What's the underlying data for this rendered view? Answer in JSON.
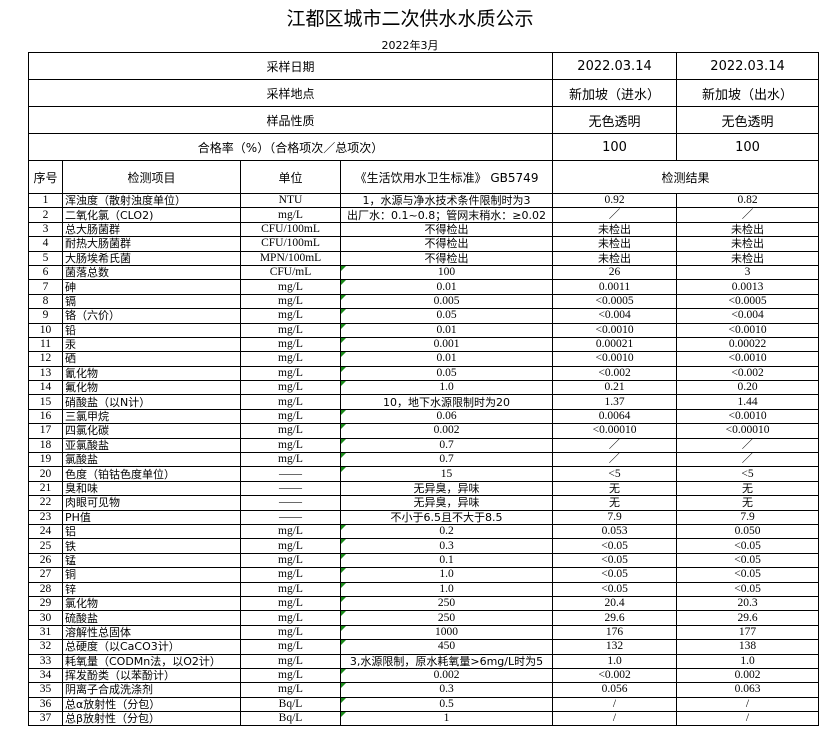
{
  "title": "江都区城市二次供水水质公示",
  "subtitle": "2022年3月",
  "summary": [
    {
      "label": "采样日期",
      "v1": "2022.03.14",
      "v2": "2022.03.14"
    },
    {
      "label": "采样地点",
      "v1": "新加坡（进水）",
      "v2": "新加坡（出水）"
    },
    {
      "label": "样品性质",
      "v1": "无色透明",
      "v2": "无色透明"
    },
    {
      "label": "合格率（%）（合格项次／总项次）",
      "v1": "100",
      "v2": "100"
    }
  ],
  "headers": {
    "no": "序号",
    "item": "检测项目",
    "unit": "单位",
    "standard": "《生活饮用水卫生标准》 GB5749",
    "result": "检测结果"
  },
  "rows": [
    [
      "1",
      "浑浊度（散射浊度单位）",
      "NTU",
      "1，水源与净水技术条件限制时为3",
      "0.92",
      "0.82"
    ],
    [
      "2",
      "二氧化氯（CLO2)",
      "mg/L",
      "出厂水：0.1~0.8；管网末稍水：≥0.02",
      "／",
      "／"
    ],
    [
      "3",
      "总大肠菌群",
      "CFU/100mL",
      "不得检出",
      "未检出",
      "未检出"
    ],
    [
      "4",
      "耐热大肠菌群",
      "CFU/100mL",
      "不得检出",
      "未检出",
      "未检出"
    ],
    [
      "5",
      "大肠埃希氏菌",
      "MPN/100mL",
      "不得检出",
      "未检出",
      "未检出"
    ],
    [
      "6",
      "菌落总数",
      "CFU/mL",
      "100",
      "26",
      "3"
    ],
    [
      "7",
      "砷",
      "mg/L",
      "0.01",
      "0.0011",
      "0.0013"
    ],
    [
      "8",
      "镉",
      "mg/L",
      "0.005",
      "<0.0005",
      "<0.0005"
    ],
    [
      "9",
      "铬（六价）",
      "mg/L",
      "0.05",
      "<0.004",
      "<0.004"
    ],
    [
      "10",
      "铅",
      "mg/L",
      "0.01",
      "<0.0010",
      "<0.0010"
    ],
    [
      "11",
      "汞",
      "mg/L",
      "0.001",
      "0.00021",
      "0.00022"
    ],
    [
      "12",
      "硒",
      "mg/L",
      "0.01",
      "<0.0010",
      "<0.0010"
    ],
    [
      "13",
      "氰化物",
      "mg/L",
      "0.05",
      "<0.002",
      "<0.002"
    ],
    [
      "14",
      "氟化物",
      "mg/L",
      "1.0",
      "0.21",
      "0.20"
    ],
    [
      "15",
      "硝酸盐（以N计）",
      "mg/L",
      "10，地下水源限制时为20",
      "1.37",
      "1.44"
    ],
    [
      "16",
      "三氯甲烷",
      "mg/L",
      "0.06",
      "0.0064",
      "<0.0010"
    ],
    [
      "17",
      "四氯化碳",
      "mg/L",
      "0.002",
      "<0.00010",
      "<0.00010"
    ],
    [
      "18",
      "亚氯酸盐",
      "mg/L",
      "0.7",
      "／",
      "／"
    ],
    [
      "19",
      "氯酸盐",
      "mg/L",
      "0.7",
      "／",
      "／"
    ],
    [
      "20",
      "色度（铂钴色度单位）",
      "——",
      "15",
      "<5",
      "<5"
    ],
    [
      "21",
      "臭和味",
      "——",
      "无异臭，异味",
      "无",
      "无"
    ],
    [
      "22",
      "肉眼可见物",
      "——",
      "无异臭，异味",
      "无",
      "无"
    ],
    [
      "23",
      "PH值",
      "——",
      "不小于6.5且不大于8.5",
      "7.9",
      "7.9"
    ],
    [
      "24",
      "铝",
      "mg/L",
      "0.2",
      "0.053",
      "0.050"
    ],
    [
      "25",
      "铁",
      "mg/L",
      "0.3",
      "<0.05",
      "<0.05"
    ],
    [
      "26",
      "锰",
      "mg/L",
      "0.1",
      "<0.05",
      "<0.05"
    ],
    [
      "27",
      "铜",
      "mg/L",
      "1.0",
      "<0.05",
      "<0.05"
    ],
    [
      "28",
      "锌",
      "mg/L",
      "1.0",
      "<0.05",
      "<0.05"
    ],
    [
      "29",
      "氯化物",
      "mg/L",
      "250",
      "20.4",
      "20.3"
    ],
    [
      "30",
      "硫酸盐",
      "mg/L",
      "250",
      "29.6",
      "29.6"
    ],
    [
      "31",
      "溶解性总固体",
      "mg/L",
      "1000",
      "176",
      "177"
    ],
    [
      "32",
      "总硬度（以CaCO3计）",
      "mg/L",
      "450",
      "132",
      "138"
    ],
    [
      "33",
      "耗氧量（CODMn法，以O2计）",
      "mg/L",
      "3,水源限制，原水耗氧量>6mg/L时为5",
      "1.0",
      "1.0"
    ],
    [
      "34",
      "挥发酚类（以苯酚计）",
      "mg/L",
      "0.002",
      "<0.002",
      "0.002"
    ],
    [
      "35",
      "阴离子合成洗涤剂",
      "mg/L",
      "0.3",
      "0.056",
      "0.063"
    ],
    [
      "36",
      "总α放射性（分包）",
      "Bq/L",
      "0.5",
      "/",
      "/"
    ],
    [
      "37",
      "总β放射性（分包）",
      "Bq/L",
      "1",
      "/",
      "/"
    ]
  ]
}
